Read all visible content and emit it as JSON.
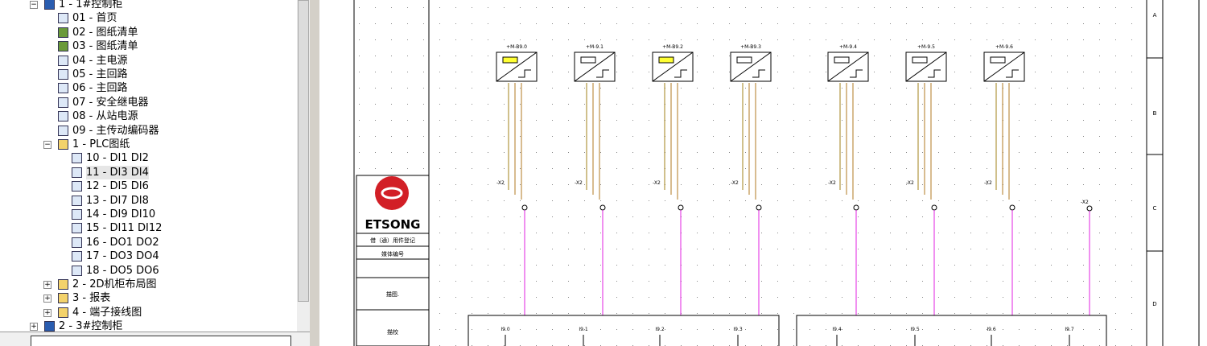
{
  "tree": [
    {
      "label": "1 - 1#控制柜",
      "level": 0,
      "icon": "cabinet",
      "expanded": true
    },
    {
      "label": "01 - 首页",
      "level": 1,
      "icon": "page"
    },
    {
      "label": "02 - 图纸清单",
      "level": 1,
      "icon": "list"
    },
    {
      "label": "03 - 图纸清单",
      "level": 1,
      "icon": "list"
    },
    {
      "label": "04 - 主电源",
      "level": 1,
      "icon": "page"
    },
    {
      "label": "05 - 主回路",
      "level": 1,
      "icon": "page"
    },
    {
      "label": "06 - 主回路",
      "level": 1,
      "icon": "page"
    },
    {
      "label": "07 - 安全继电器",
      "level": 1,
      "icon": "page"
    },
    {
      "label": "08 - 从站电源",
      "level": 1,
      "icon": "page"
    },
    {
      "label": "09 - 主传动编码器",
      "level": 1,
      "icon": "page"
    },
    {
      "label": "1 - PLC图纸",
      "level": 1,
      "icon": "folder",
      "expanded": true
    },
    {
      "label": "10 - DI1 DI2",
      "level": 2,
      "icon": "page"
    },
    {
      "label": "11 - DI3 DI4",
      "level": 2,
      "icon": "page",
      "selected": true
    },
    {
      "label": "12 - DI5 DI6",
      "level": 2,
      "icon": "page"
    },
    {
      "label": "13 - DI7 DI8",
      "level": 2,
      "icon": "page"
    },
    {
      "label": "14 - DI9 DI10",
      "level": 2,
      "icon": "page"
    },
    {
      "label": "15 - DI11 DI12",
      "level": 2,
      "icon": "page"
    },
    {
      "label": "16 - DO1 DO2",
      "level": 2,
      "icon": "page"
    },
    {
      "label": "17 - DO3 DO4",
      "level": 2,
      "icon": "page"
    },
    {
      "label": "18 - DO5 DO6",
      "level": 2,
      "icon": "page"
    },
    {
      "label": "2 - 2D机柜布局图",
      "level": 1,
      "icon": "folder",
      "expanded": false
    },
    {
      "label": "3 - 报表",
      "level": 1,
      "icon": "folder",
      "expanded": false
    },
    {
      "label": "4 - 端子接线图",
      "level": 1,
      "icon": "folder",
      "expanded": false
    },
    {
      "label": "2 - 3#控制柜",
      "level": 0,
      "icon": "cabinet",
      "expanded": false
    }
  ],
  "schematic": {
    "devices": [
      {
        "label": "+M-B9.0",
        "terminal": "-X2"
      },
      {
        "label": "+M-9.1",
        "terminal": "-X2"
      },
      {
        "label": "+M-B9.2",
        "terminal": "-X2"
      },
      {
        "label": "+M-B9.3",
        "terminal": "-X2"
      },
      {
        "label": "+M-9.4",
        "terminal": "-X2"
      },
      {
        "label": "+M-9.5",
        "terminal": "-X2"
      },
      {
        "label": "+M-9.6",
        "terminal": "-X2"
      }
    ],
    "extra_terminal": "-X2",
    "inputs": [
      "I9.0",
      "I9.1",
      "I9.2",
      "I9.3",
      "I9.4",
      "I9.5",
      "I9.6",
      "I9.7"
    ],
    "rows": [
      "A",
      "B",
      "C",
      "D"
    ],
    "title_block": {
      "logo": "ETSONG",
      "fields": [
        "借（通）用件登记",
        "媒体编号",
        "描图.",
        "描校"
      ]
    }
  }
}
